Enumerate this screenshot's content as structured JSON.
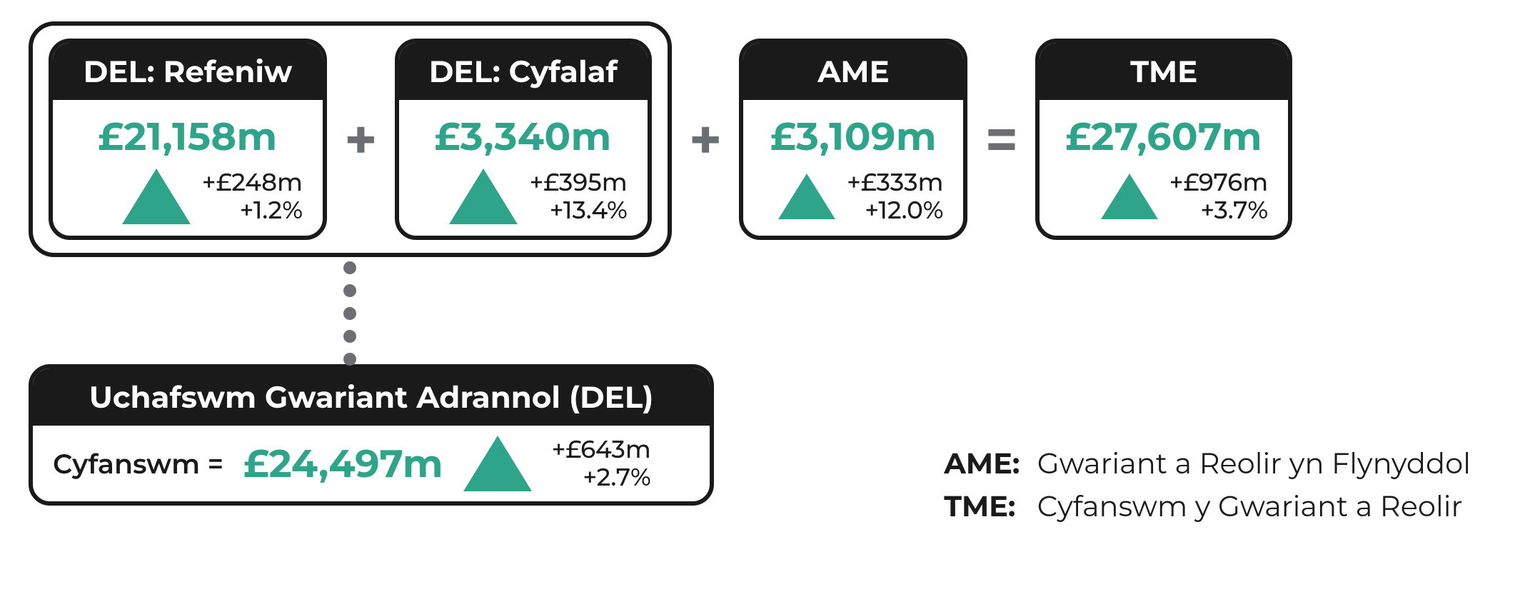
{
  "colors": {
    "accent": "#2ea58a",
    "dark": "#1a1a1a",
    "grey": "#6b6f72",
    "background": "#ffffff"
  },
  "typography": {
    "header_fontsize": 42,
    "value_fontsize": 54,
    "delta_fontsize": 34,
    "operator_fontsize": 78,
    "legend_fontsize": 40,
    "font_family": "Segoe UI / Montserrat"
  },
  "shapes": {
    "card_border_width": 6,
    "card_border_radius": 30,
    "group_border_radius": 36,
    "triangle_color": "#2ea58a",
    "dot_color": "#6b6f72",
    "dot_diameter": 18,
    "dot_count": 5
  },
  "cards": {
    "del_revenue": {
      "title": "DEL: Refeniw",
      "value": "£21,158m",
      "delta_value": "+£248m",
      "delta_pct": "+1.2%",
      "direction": "up"
    },
    "del_capital": {
      "title": "DEL: Cyfalaf",
      "value": "£3,340m",
      "delta_value": "+£395m",
      "delta_pct": "+13.4%",
      "direction": "up"
    },
    "ame": {
      "title": "AME",
      "value": "£3,109m",
      "delta_value": "+£333m",
      "delta_pct": "+12.0%",
      "direction": "up"
    },
    "tme": {
      "title": "TME",
      "value": "£27,607m",
      "delta_value": "+£976m",
      "delta_pct": "+3.7%",
      "direction": "up"
    }
  },
  "operators": {
    "plus1": "+",
    "plus2": "+",
    "equals": "="
  },
  "total": {
    "title": "Uchafswm Gwariant Adrannol (DEL)",
    "label": "Cyfanswm =",
    "value": "£24,497m",
    "delta_value": "+£643m",
    "delta_pct": "+2.7%",
    "direction": "up"
  },
  "legend": {
    "ame_term": "AME",
    "ame_colon": ":",
    "ame_def": "Gwariant a Reolir yn Flynyddol",
    "tme_term": "TME",
    "tme_colon": ":",
    "tme_def": "Cyfanswm y Gwariant a Reolir"
  }
}
